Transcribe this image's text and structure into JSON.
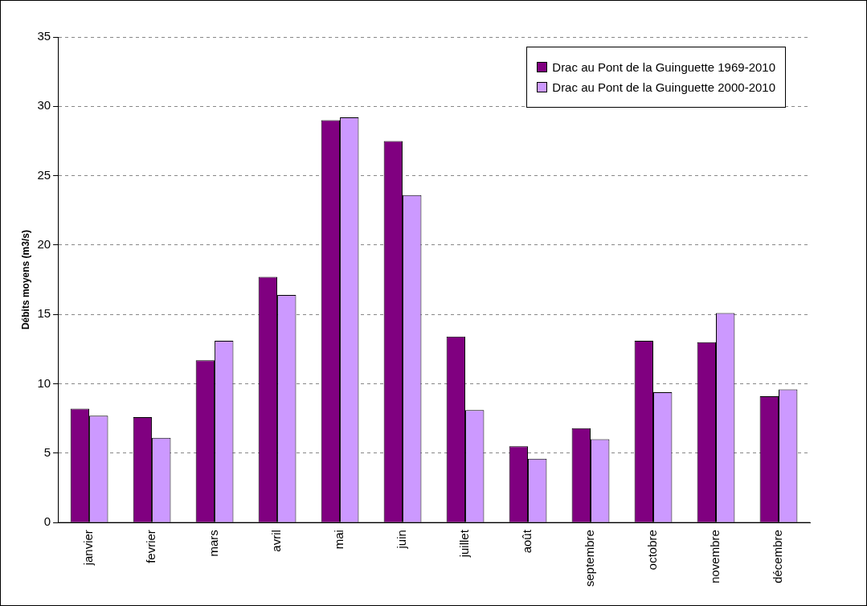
{
  "chart_data": {
    "type": "bar",
    "ylabel": "Débits moyens (m3/s)",
    "categories": [
      "janvier",
      "fevrier",
      "mars",
      "avril",
      "mai",
      "juin",
      "juillet",
      "août",
      "septembre",
      "octobre",
      "novembre",
      "décembre"
    ],
    "series": [
      {
        "name": "Drac au Pont de la Guinguette 1969-2010",
        "color": "#800080",
        "values": [
          8.2,
          7.6,
          11.7,
          17.7,
          29.0,
          27.5,
          13.4,
          5.5,
          6.8,
          13.1,
          13.0,
          9.1
        ]
      },
      {
        "name": "Drac au Pont de la Guinguette 2000-2010",
        "color": "#cc99ff",
        "values": [
          7.7,
          6.1,
          13.1,
          16.4,
          29.2,
          23.6,
          8.1,
          4.6,
          6.0,
          9.4,
          15.1,
          9.6
        ]
      }
    ],
    "ylim": [
      0,
      35
    ],
    "yticks": [
      0,
      5,
      10,
      15,
      20,
      25,
      30,
      35
    ],
    "grid": "y",
    "legend": "top right"
  }
}
